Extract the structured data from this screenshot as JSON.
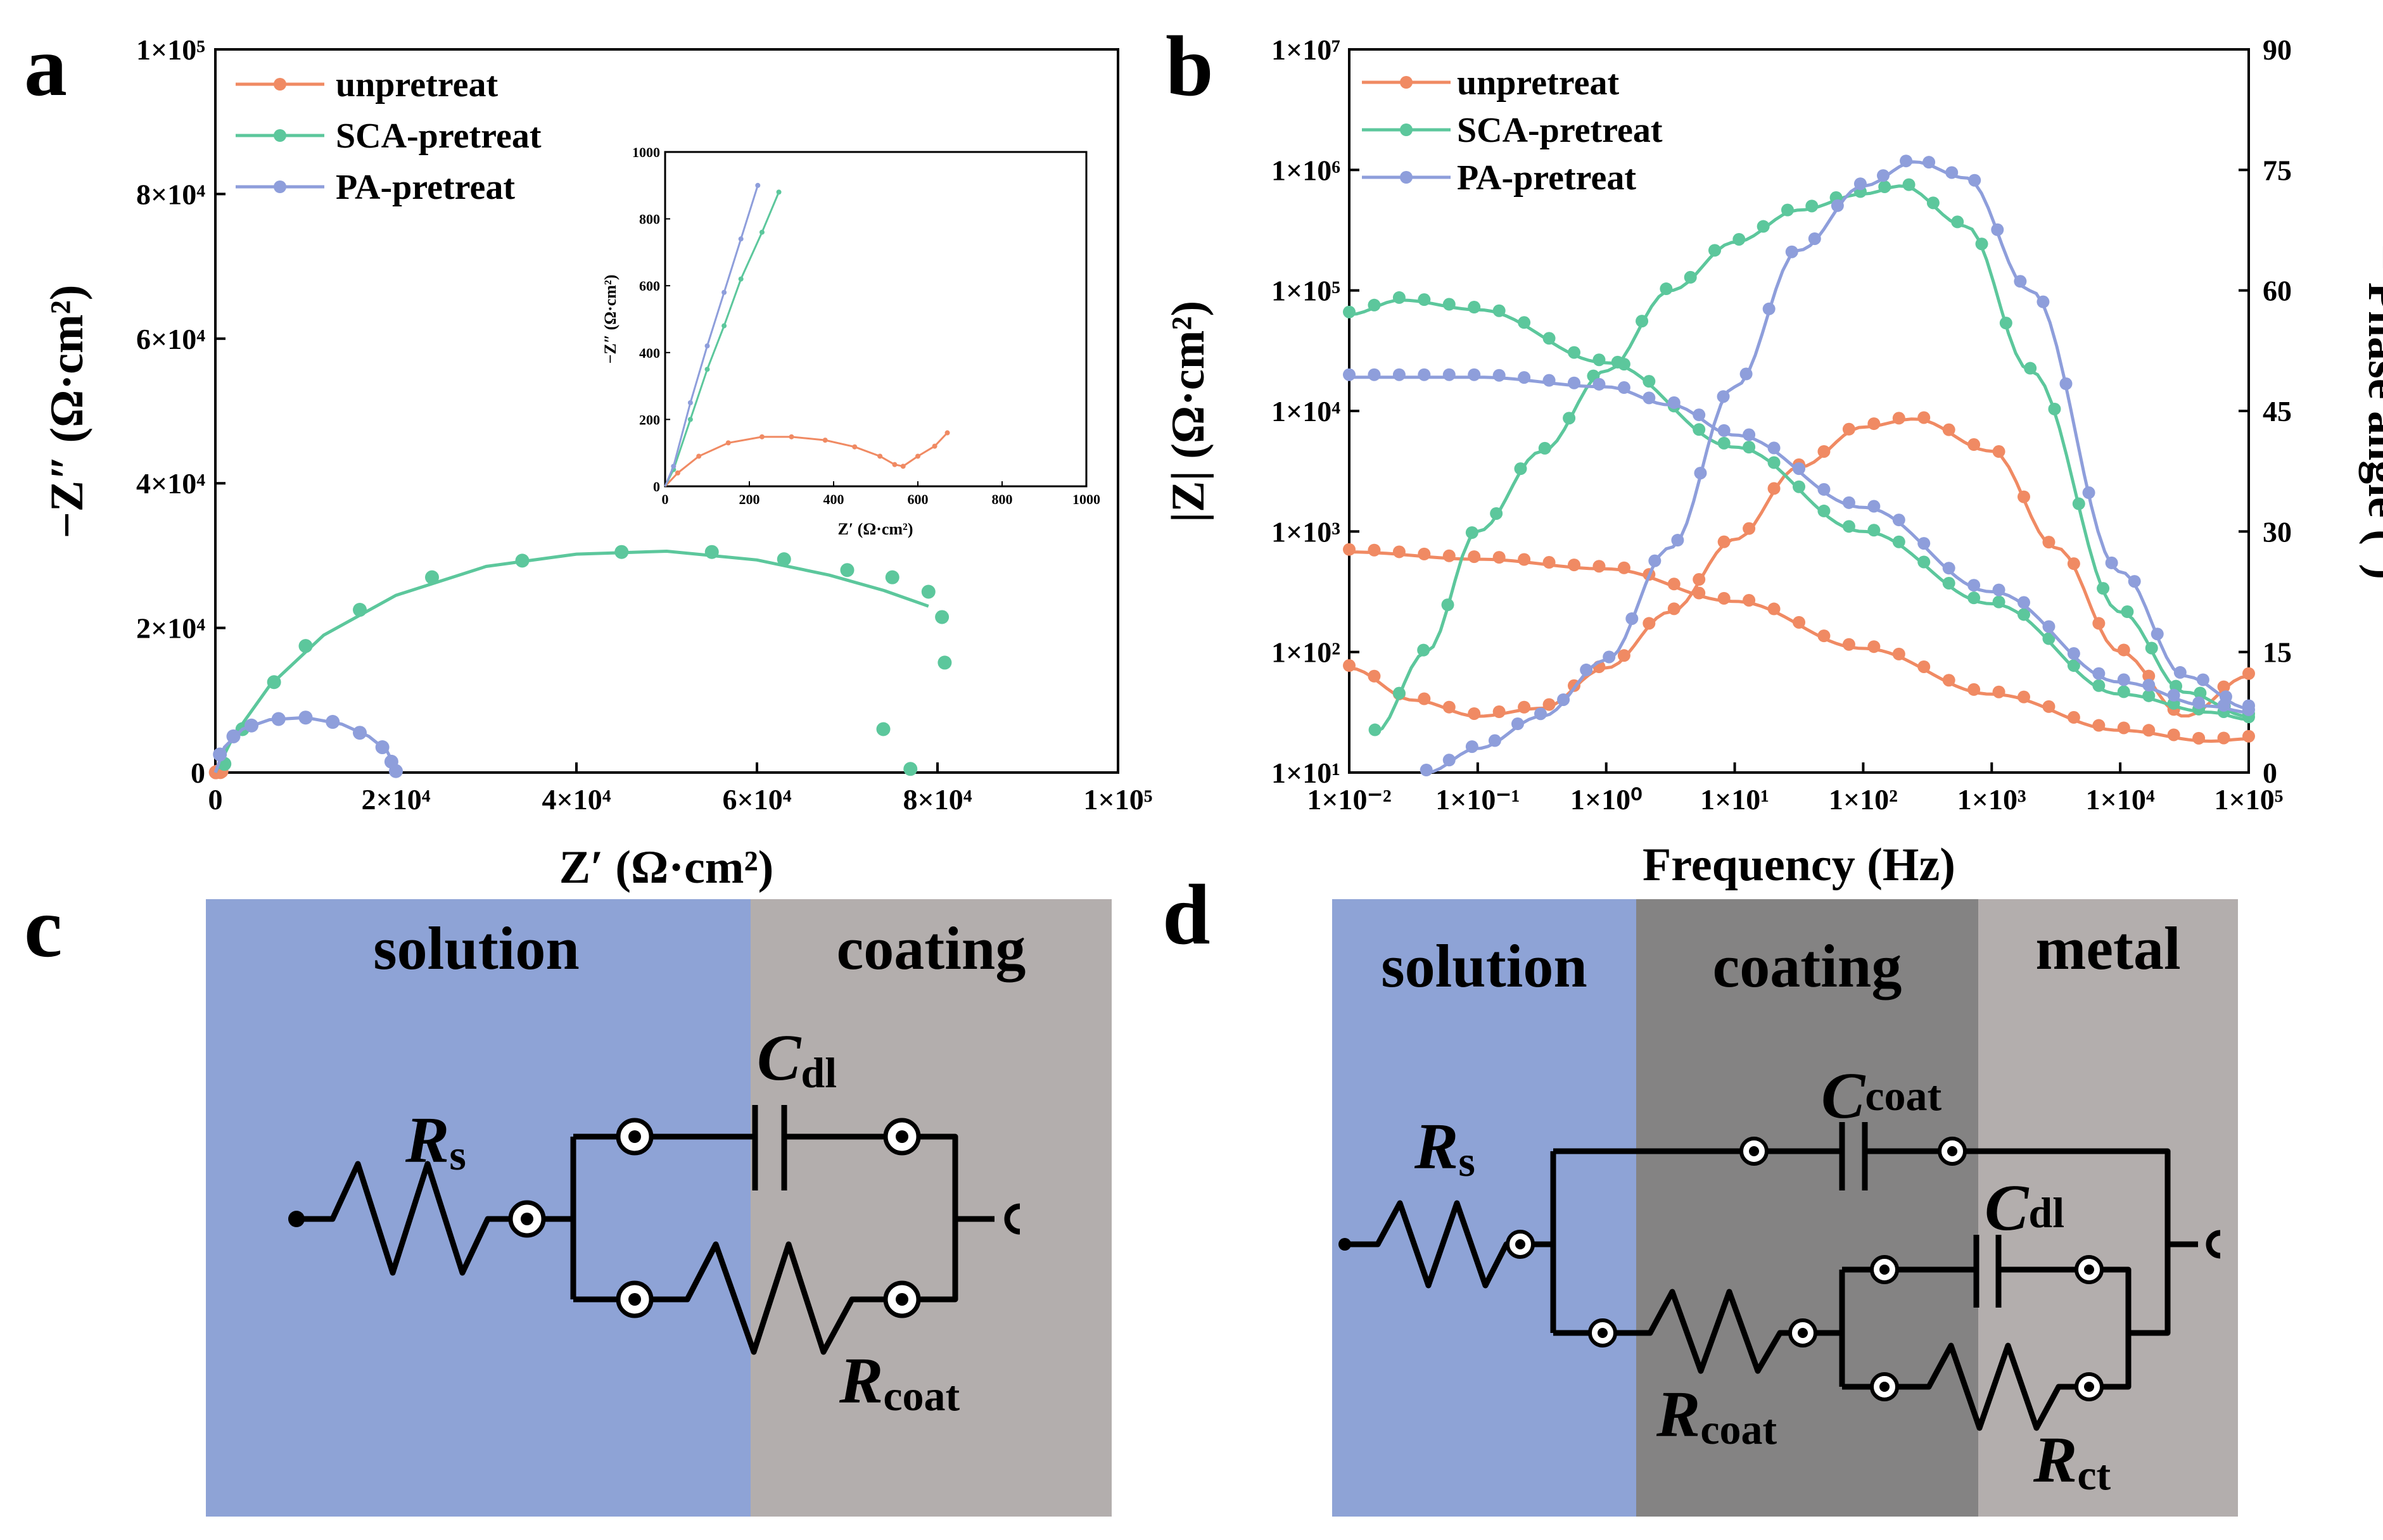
{
  "colors": {
    "unpretreat": "#F08A63",
    "sca": "#5CC79C",
    "pa": "#8E9EDB",
    "solution_bg": "#8EA3D6",
    "coating_bg_c": "#B3AEAD",
    "coating_bg_d": "#848383",
    "metal_bg": "#B3AEAD"
  },
  "panel_labels": {
    "a": "a",
    "b": "b",
    "c": "c",
    "d": "d"
  },
  "chart_data": [
    {
      "id": "a",
      "type": "scatter",
      "title": "",
      "xlabel": "Z′ (Ω·cm²)",
      "ylabel": "−Z″ (Ω·cm²)",
      "xlim": [
        0,
        100000
      ],
      "ylim": [
        0,
        100000
      ],
      "xticks": [
        0,
        20000,
        40000,
        60000,
        80000,
        100000
      ],
      "xtick_labels": [
        "0",
        "2×10⁴",
        "4×10⁴",
        "6×10⁴",
        "8×10⁴",
        "1×10⁵"
      ],
      "yticks": [
        0,
        20000,
        40000,
        60000,
        80000,
        100000
      ],
      "ytick_labels": [
        "0",
        "2×10⁴",
        "4×10⁴",
        "6×10⁴",
        "8×10⁴",
        "1×10⁵"
      ],
      "legend": [
        "unpretreat",
        "SCA-pretreat",
        "PA-pretreat"
      ],
      "legend_position": "top-left",
      "series": [
        {
          "name": "unpretreat",
          "points": [
            [
              50,
              30
            ],
            [
              200,
              120
            ],
            [
              400,
              145
            ],
            [
              550,
              60
            ],
            [
              680,
              170
            ]
          ],
          "fit": [
            [
              0,
              0
            ],
            [
              550,
              60
            ],
            [
              680,
              170
            ]
          ]
        },
        {
          "name": "SCA-pretreat",
          "points": [
            [
              1000,
              1200
            ],
            [
              3000,
              6000
            ],
            [
              6500,
              12500
            ],
            [
              10000,
              17500
            ],
            [
              16000,
              22500
            ],
            [
              24000,
              27000
            ],
            [
              34000,
              29300
            ],
            [
              45000,
              30500
            ],
            [
              55000,
              30500
            ],
            [
              63000,
              29500
            ],
            [
              70000,
              28000
            ],
            [
              75000,
              27000
            ],
            [
              79000,
              25000
            ],
            [
              80500,
              21500
            ],
            [
              80800,
              15200
            ],
            [
              74000,
              6000
            ],
            [
              77000,
              500
            ]
          ],
          "fit": [
            [
              0,
              0
            ],
            [
              2000,
              5000
            ],
            [
              6000,
              12000
            ],
            [
              12000,
              19000
            ],
            [
              20000,
              24500
            ],
            [
              30000,
              28500
            ],
            [
              40000,
              30200
            ],
            [
              50000,
              30600
            ],
            [
              60000,
              29400
            ],
            [
              68000,
              27300
            ],
            [
              74000,
              25200
            ],
            [
              79000,
              23000
            ]
          ]
        },
        {
          "name": "PA-pretreat",
          "points": [
            [
              500,
              2500
            ],
            [
              2000,
              5000
            ],
            [
              4000,
              6500
            ],
            [
              7000,
              7400
            ],
            [
              10000,
              7600
            ],
            [
              13000,
              7000
            ],
            [
              16000,
              5500
            ],
            [
              18500,
              3500
            ],
            [
              19500,
              1500
            ],
            [
              20000,
              200
            ]
          ],
          "fit": [
            [
              0,
              0
            ],
            [
              1000,
              3500
            ],
            [
              3000,
              6000
            ],
            [
              6000,
              7300
            ],
            [
              10000,
              7600
            ],
            [
              14000,
              6700
            ],
            [
              17000,
              5000
            ],
            [
              19000,
              3000
            ],
            [
              20000,
              500
            ]
          ]
        }
      ],
      "inset": {
        "xlim": [
          0,
          1000
        ],
        "ylim": [
          0,
          1000
        ],
        "xticks": [
          0,
          200,
          400,
          600,
          800,
          1000
        ],
        "yticks": [
          0,
          200,
          400,
          600,
          800,
          1000
        ],
        "xtick_labels": [
          "0",
          "200",
          "400",
          "600",
          "800",
          "1000"
        ],
        "ytick_labels": [
          "0",
          "200",
          "400",
          "600",
          "800",
          "1000"
        ],
        "xlabel": "Z′ (Ω·cm²)",
        "ylabel": "−Z″ (Ω·cm²)",
        "series": [
          {
            "name": "unpretreat",
            "points": [
              [
                30,
                40
              ],
              [
                80,
                90
              ],
              [
                150,
                130
              ],
              [
                230,
                148
              ],
              [
                300,
                148
              ],
              [
                380,
                138
              ],
              [
                450,
                118
              ],
              [
                510,
                90
              ],
              [
                545,
                65
              ],
              [
                565,
                60
              ],
              [
                600,
                90
              ],
              [
                640,
                120
              ],
              [
                670,
                160
              ]
            ]
          },
          {
            "name": "SCA-pretreat",
            "points": [
              [
                20,
                50
              ],
              [
                60,
                200
              ],
              [
                100,
                350
              ],
              [
                140,
                480
              ],
              [
                180,
                620
              ],
              [
                230,
                760
              ],
              [
                270,
                880
              ]
            ]
          },
          {
            "name": "PA-pretreat",
            "points": [
              [
                20,
                60
              ],
              [
                60,
                250
              ],
              [
                100,
                420
              ],
              [
                140,
                580
              ],
              [
                180,
                740
              ],
              [
                220,
                900
              ]
            ]
          }
        ]
      }
    },
    {
      "id": "b",
      "type": "line",
      "title": "",
      "xlabel": "Frequency (Hz)",
      "ylabel": "|Z| (Ω·cm²)",
      "y2label": "− Phase angle (°)",
      "xscale": "log",
      "yscale": "log",
      "xlim": [
        0.01,
        100000
      ],
      "ylim": [
        10,
        10000000
      ],
      "y2lim": [
        0,
        90
      ],
      "xtick_labels": [
        "1×10⁻²",
        "1×10⁻¹",
        "1×10⁰",
        "1×10¹",
        "1×10²",
        "1×10³",
        "1×10⁴",
        "1×10⁵"
      ],
      "ytick_labels": [
        "1×10¹",
        "1×10²",
        "1×10³",
        "1×10⁴",
        "1×10⁵",
        "1×10⁶",
        "1×10⁷"
      ],
      "y2ticks": [
        0,
        15,
        30,
        45,
        60,
        75,
        90
      ],
      "y2tick_labels": [
        "0",
        "15",
        "30",
        "45",
        "60",
        "75",
        "90"
      ],
      "legend": [
        "unpretreat",
        "SCA-pretreat",
        "PA-pretreat"
      ],
      "legend_position": "top-left",
      "series": [
        {
          "name": "unpretreat",
          "kind": "modulus",
          "freq_log": [
            -2,
            -1,
            0,
            1,
            2,
            3,
            4,
            4.7,
            5
          ],
          "values_log": [
            2.83,
            2.77,
            2.69,
            2.42,
            2.03,
            1.65,
            1.35,
            1.26,
            1.28
          ]
        },
        {
          "name": "unpretreat",
          "kind": "phase",
          "freq_log": [
            -2,
            -1.5,
            -1,
            -0.5,
            0,
            0.5,
            1,
            1.5,
            2,
            2.4,
            3,
            3.5,
            4,
            4.5,
            5
          ],
          "values": [
            13,
            9,
            7,
            8,
            13,
            20,
            29,
            38,
            43,
            44,
            40,
            28,
            15,
            7,
            12
          ]
        },
        {
          "name": "SCA-pretreat",
          "kind": "modulus",
          "freq_log": [
            -2,
            -1.6,
            -1,
            0,
            1,
            2,
            3,
            4,
            4.7,
            5
          ],
          "values_log": [
            4.8,
            4.92,
            4.84,
            4.4,
            3.7,
            3.0,
            2.4,
            1.65,
            1.5,
            1.44
          ]
        },
        {
          "name": "SCA-pretreat",
          "kind": "phase",
          "freq_log": [
            -1.8,
            -1.4,
            -1,
            -0.5,
            0,
            0.5,
            1,
            1.5,
            2,
            2.3,
            2.8,
            3.3,
            4,
            4.5,
            5
          ],
          "values": [
            5,
            15,
            30,
            40,
            50,
            60,
            66,
            70,
            72,
            73,
            68,
            50,
            20,
            10,
            7
          ]
        },
        {
          "name": "PA-pretreat",
          "kind": "modulus",
          "freq_log": [
            -2,
            -1,
            0,
            0.5,
            1,
            2,
            3,
            4,
            4.7,
            5
          ],
          "values_log": [
            4.28,
            4.28,
            4.2,
            4.05,
            3.8,
            3.2,
            2.5,
            1.75,
            1.55,
            1.5
          ]
        },
        {
          "name": "PA-pretreat",
          "kind": "phase",
          "freq_log": [
            -1.4,
            -1,
            -0.5,
            0,
            0.5,
            1,
            1.5,
            2,
            2.4,
            2.8,
            3.3,
            4,
            4.5,
            5
          ],
          "values": [
            0,
            3,
            7,
            14,
            28,
            48,
            65,
            73,
            76,
            74,
            60,
            25,
            12,
            8
          ]
        }
      ]
    }
  ],
  "circuit_c": {
    "regions": [
      "solution",
      "coating"
    ],
    "labels": {
      "rs": "R",
      "rs_sub": "s",
      "cdl": "C",
      "cdl_sub": "dl",
      "rcoat": "R",
      "rcoat_sub": "coat"
    }
  },
  "circuit_d": {
    "regions": [
      "solution",
      "coating",
      "metal"
    ],
    "labels": {
      "rs": "R",
      "rs_sub": "s",
      "ccoat": "C",
      "ccoat_sub": "coat",
      "cdl": "C",
      "cdl_sub": "dl",
      "rcoat": "R",
      "rcoat_sub": "coat",
      "rct": "R",
      "rct_sub": "ct"
    }
  }
}
